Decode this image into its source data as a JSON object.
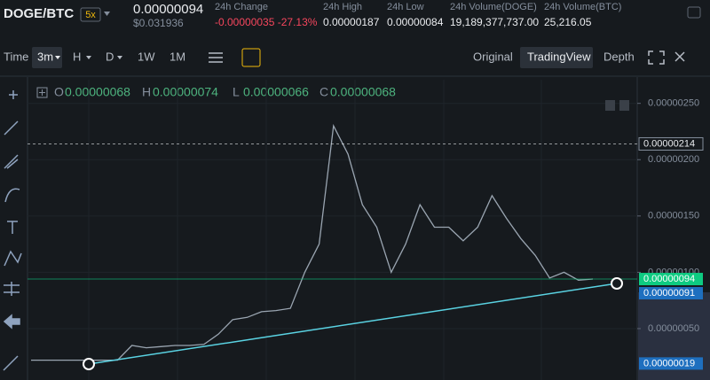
{
  "header": {
    "pair": "DOGE/BTC",
    "leverage": "5x",
    "price": "0.00000094",
    "price_usd": "$0.031936",
    "stats": [
      {
        "label": "24h Change",
        "value": "-0.00000035 -27.13%"
      },
      {
        "label": "24h High",
        "value": "0.00000187"
      },
      {
        "label": "24h Low",
        "value": "0.00000084"
      },
      {
        "label": "24h Volume(DOGE)",
        "value": "19,189,377,737.00"
      },
      {
        "label": "24h Volume(BTC)",
        "value": "25,216.05"
      }
    ]
  },
  "toolbar": {
    "intervals": [
      "Time",
      "3m",
      "H",
      "D",
      "1W",
      "1M"
    ],
    "views": [
      "Original",
      "TradingView",
      "Depth"
    ]
  },
  "ohlc": [
    {
      "label": "O",
      "value": "0.00000068"
    },
    {
      "label": "H",
      "value": "0.00000074"
    },
    {
      "label": "L",
      "value": "0.00000066"
    },
    {
      "label": "C",
      "value": "0.00000068"
    }
  ],
  "chart_data": {
    "type": "line",
    "color": "#9aa5b1",
    "values": [
      2.2e-07,
      2.2e-07,
      2.2e-07,
      2.2e-07,
      2.2e-07,
      2.2e-07,
      2.2e-07,
      3.5e-07,
      3.3e-07,
      3.4e-07,
      3.5e-07,
      3.5e-07,
      3.6e-07,
      4.5e-07,
      5.8e-07,
      6e-07,
      6.5e-07,
      6.6e-07,
      6.8e-07,
      1e-06,
      1.25e-06,
      2.3e-06,
      2.05e-06,
      1.6e-06,
      1.4e-06,
      1e-06,
      1.25e-06,
      1.6e-06,
      1.4e-06,
      1.4e-06,
      1.28e-06,
      1.4e-06,
      1.68e-06,
      1.48e-06,
      1.3e-06,
      1.15e-06,
      9.5e-07,
      1e-06,
      9.3e-07,
      9.4e-07
    ],
    "ylim": [
      7.5e-08,
      2.71e-06
    ],
    "yticks": [
      {
        "value": 5e-07,
        "label": "0.00000050"
      },
      {
        "value": 1e-06,
        "label": "0.00000100"
      },
      {
        "value": 1.5e-06,
        "label": "0.00000150"
      },
      {
        "value": 2e-06,
        "label": "0.00000200"
      },
      {
        "value": 2.5e-06,
        "label": "0.00000250"
      }
    ],
    "price_markers": [
      {
        "value": 2.14e-06,
        "label": "0.00000214",
        "color": "#eaecef"
      },
      {
        "value": 9.4e-07,
        "label": "0.00000094",
        "color": "#0ecb81"
      },
      {
        "value": 9.1e-07,
        "label": "0.00000091",
        "color": "#1e6fbf"
      },
      {
        "value": 1.9e-07,
        "label": "0.00000019",
        "color": "#1e6fbf"
      }
    ],
    "grid": true
  }
}
